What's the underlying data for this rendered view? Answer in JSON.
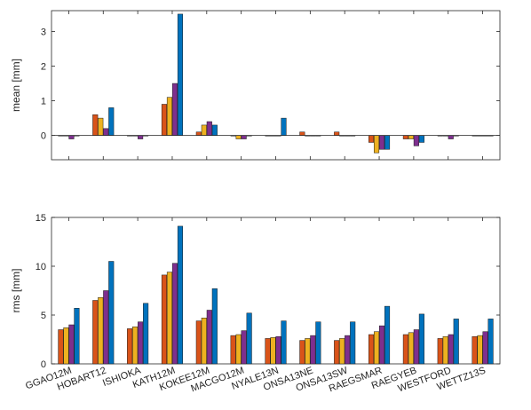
{
  "chart_data": [
    {
      "type": "bar",
      "ylabel": "mean [mm]",
      "xlabel": "",
      "title": "",
      "ylim": [
        -0.7,
        3.6
      ],
      "yticks": [
        0,
        1,
        2,
        3
      ],
      "grid": false,
      "categories": [
        "GGAO12M",
        "HOBART12",
        "ISHIOKA",
        "KATH12M",
        "KOKEE12M",
        "MACGO12M",
        "NYALE13N",
        "ONSA13NE",
        "ONSA13SW",
        "RAEGSMAR",
        "RAEGYEB",
        "WESTFORD",
        "WETTZ13S"
      ],
      "series": [
        {
          "color": "#d95319",
          "values": [
            0.0,
            0.6,
            0.0,
            0.9,
            0.1,
            0.0,
            0.0,
            0.1,
            0.1,
            -0.2,
            -0.1,
            0.0,
            0.0
          ]
        },
        {
          "color": "#edb120",
          "values": [
            0.0,
            0.5,
            0.0,
            1.1,
            0.3,
            -0.1,
            0.0,
            0.0,
            0.0,
            -0.5,
            -0.1,
            0.0,
            0.0
          ]
        },
        {
          "color": "#7e2f8e",
          "values": [
            -0.1,
            0.2,
            -0.1,
            1.5,
            0.4,
            -0.1,
            0.0,
            0.0,
            0.0,
            -0.4,
            -0.3,
            -0.1,
            0.0
          ]
        },
        {
          "color": "#0072bd",
          "values": [
            0.0,
            0.8,
            0.0,
            3.5,
            0.3,
            0.0,
            0.5,
            0.0,
            0.0,
            -0.4,
            -0.2,
            0.0,
            0.0
          ]
        }
      ]
    },
    {
      "type": "bar",
      "ylabel": "rms [mm]",
      "xlabel": "",
      "title": "",
      "ylim": [
        0,
        15
      ],
      "yticks": [
        0,
        5,
        10,
        15
      ],
      "grid": false,
      "categories": [
        "GGAO12M",
        "HOBART12",
        "ISHIOKA",
        "KATH12M",
        "KOKEE12M",
        "MACGO12M",
        "NYALE13N",
        "ONSA13NE",
        "ONSA13SW",
        "RAEGSMAR",
        "RAEGYEB",
        "WESTFORD",
        "WETTZ13S"
      ],
      "series": [
        {
          "color": "#d95319",
          "values": [
            3.5,
            6.5,
            3.6,
            9.1,
            4.4,
            2.9,
            2.6,
            2.4,
            2.4,
            3.0,
            3.0,
            2.6,
            2.8
          ]
        },
        {
          "color": "#edb120",
          "values": [
            3.7,
            6.8,
            3.8,
            9.4,
            4.7,
            3.0,
            2.7,
            2.6,
            2.6,
            3.3,
            3.2,
            2.8,
            2.9
          ]
        },
        {
          "color": "#7e2f8e",
          "values": [
            4.0,
            7.5,
            4.3,
            10.3,
            5.5,
            3.4,
            2.8,
            2.9,
            2.9,
            3.9,
            3.5,
            3.0,
            3.3
          ]
        },
        {
          "color": "#0072bd",
          "values": [
            5.7,
            10.5,
            6.2,
            14.1,
            7.7,
            5.2,
            4.4,
            4.3,
            4.3,
            5.9,
            5.1,
            4.6,
            4.6
          ]
        }
      ]
    }
  ]
}
